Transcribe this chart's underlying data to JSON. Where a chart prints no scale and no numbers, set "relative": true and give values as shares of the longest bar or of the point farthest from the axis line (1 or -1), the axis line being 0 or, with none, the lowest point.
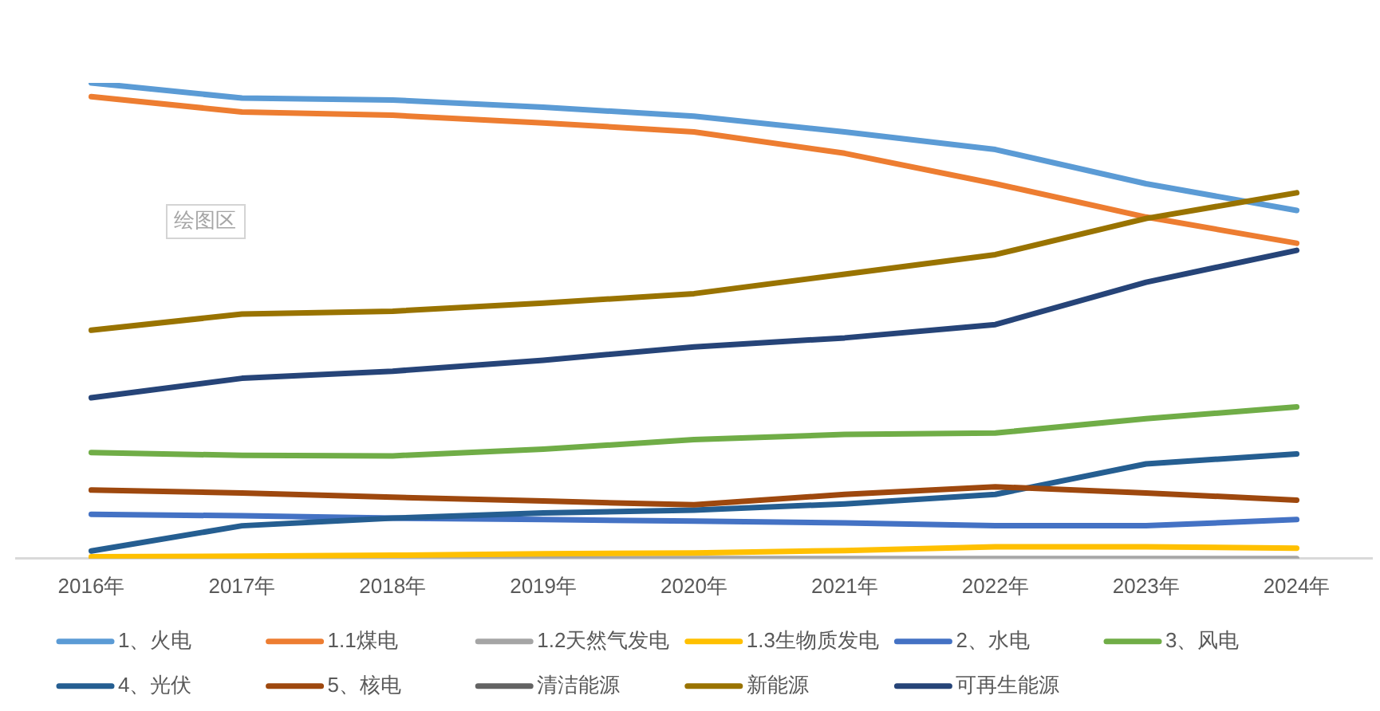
{
  "chart_data": {
    "type": "line",
    "relative": true,
    "legend": "bottom",
    "annotations": [
      "绘图区"
    ],
    "categories": [
      "2016年",
      "2017年",
      "2018年",
      "2019年",
      "2020年",
      "2021年",
      "2022年",
      "2023年",
      "2024年"
    ],
    "series": [
      {
        "name": "1、火电",
        "color": "#5b9bd5",
        "values": [
          1.0,
          0.968,
          0.964,
          0.949,
          0.93,
          0.897,
          0.86,
          0.788,
          0.732
        ]
      },
      {
        "name": "1.1煤电",
        "color": "#ed7d31",
        "values": [
          0.971,
          0.939,
          0.932,
          0.916,
          0.897,
          0.852,
          0.788,
          0.718,
          0.663
        ]
      },
      {
        "name": "1.2天然气发电",
        "color": "#a5a5a5",
        "values": [
          0,
          0,
          0,
          0,
          0,
          0,
          0,
          0,
          0
        ]
      },
      {
        "name": "1.3生物质发电",
        "color": "#ffc000",
        "values": [
          0.004,
          0.005,
          0.007,
          0.01,
          0.012,
          0.017,
          0.025,
          0.025,
          0.022
        ]
      },
      {
        "name": "2、水电",
        "color": "#4472c4",
        "values": [
          0.093,
          0.09,
          0.085,
          0.082,
          0.079,
          0.075,
          0.069,
          0.069,
          0.082
        ]
      },
      {
        "name": "3、风电",
        "color": "#70ad47",
        "values": [
          0.223,
          0.217,
          0.216,
          0.23,
          0.25,
          0.261,
          0.264,
          0.294,
          0.319
        ]
      },
      {
        "name": "4、光伏",
        "color": "#255e91",
        "values": [
          0.016,
          0.069,
          0.085,
          0.096,
          0.102,
          0.115,
          0.135,
          0.199,
          0.22
        ]
      },
      {
        "name": "5、核电",
        "color": "#9e480e",
        "values": [
          0.144,
          0.138,
          0.129,
          0.121,
          0.113,
          0.135,
          0.151,
          0.138,
          0.123
        ]
      },
      {
        "name": "清洁能源",
        "color": "#636363",
        "values": [
          null,
          null,
          null,
          null,
          null,
          null,
          null,
          null,
          null
        ]
      },
      {
        "name": "新能源",
        "color": "#997300",
        "values": [
          0.48,
          0.514,
          0.52,
          0.537,
          0.557,
          0.598,
          0.639,
          0.715,
          0.769
        ]
      },
      {
        "name": "可再生能源",
        "color": "#264478",
        "values": [
          0.338,
          0.379,
          0.394,
          0.417,
          0.445,
          0.464,
          0.492,
          0.581,
          0.648
        ]
      }
    ]
  }
}
